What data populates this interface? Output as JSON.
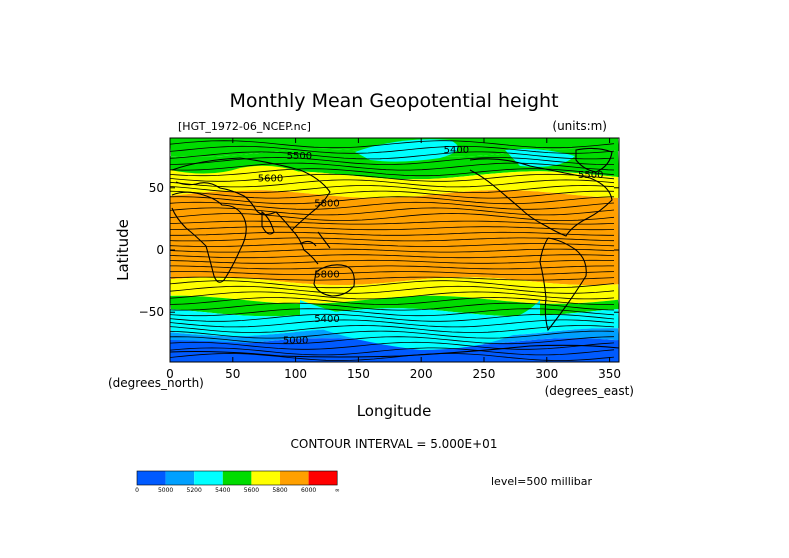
{
  "chart_data": {
    "type": "heatmap",
    "title": "Monthly Mean Geopotential height",
    "subtitle_left": "[HGT_1972-06_NCEP.nc]",
    "subtitle_right": "(units:m)",
    "xlabel": "Longitude",
    "ylabel": "Latitude",
    "x_unit_label": "(degrees_east)",
    "y_unit_label": "(degrees_north)",
    "xlim": [
      0,
      357.5
    ],
    "ylim": [
      -90,
      90
    ],
    "xticks": [
      0,
      50,
      100,
      150,
      200,
      250,
      300,
      350
    ],
    "yticks": [
      50,
      0,
      -50
    ],
    "contour_interval_text": "CONTOUR INTERVAL = 5.000E+01",
    "level_text": "level=500 millibar",
    "colorbar": {
      "labels": [
        "0",
        "5000",
        "5200",
        "5400",
        "5600",
        "5800",
        "6000",
        "∞"
      ],
      "colors": [
        "#005aff",
        "#00a0ff",
        "#00ffff",
        "#00dc00",
        "#ffff00",
        "#ffa000",
        "#ff0000"
      ]
    },
    "contour_labels": [
      {
        "text": "5400",
        "lon": 228,
        "lat": 78
      },
      {
        "text": "5500",
        "lon": 103,
        "lat": 73
      },
      {
        "text": "5600",
        "lon": 80,
        "lat": 55
      },
      {
        "text": "5800",
        "lon": 125,
        "lat": 35
      },
      {
        "text": "5800",
        "lon": 125,
        "lat": -22
      },
      {
        "text": "5400",
        "lon": 125,
        "lat": -58
      },
      {
        "text": "5000",
        "lon": 100,
        "lat": -75
      },
      {
        "text": "5500",
        "lon": 335,
        "lat": 58
      }
    ],
    "bands": [
      {
        "lat_from": 90,
        "lat_to": 78,
        "color": "#00dc00"
      },
      {
        "lat_from": 78,
        "lat_to": 60,
        "color": "#00dc00"
      },
      {
        "lat_from": 60,
        "lat_to": 45,
        "color": "#ffff00"
      },
      {
        "lat_from": 45,
        "lat_to": -25,
        "color": "#ffa000"
      },
      {
        "lat_from": -25,
        "lat_to": -40,
        "color": "#ffff00"
      },
      {
        "lat_from": -40,
        "lat_to": -50,
        "color": "#00dc00"
      },
      {
        "lat_from": -50,
        "lat_to": -66,
        "color": "#00ffff"
      },
      {
        "lat_from": -66,
        "lat_to": -74,
        "color": "#00a0ff"
      },
      {
        "lat_from": -74,
        "lat_to": -90,
        "color": "#005aff"
      }
    ]
  }
}
